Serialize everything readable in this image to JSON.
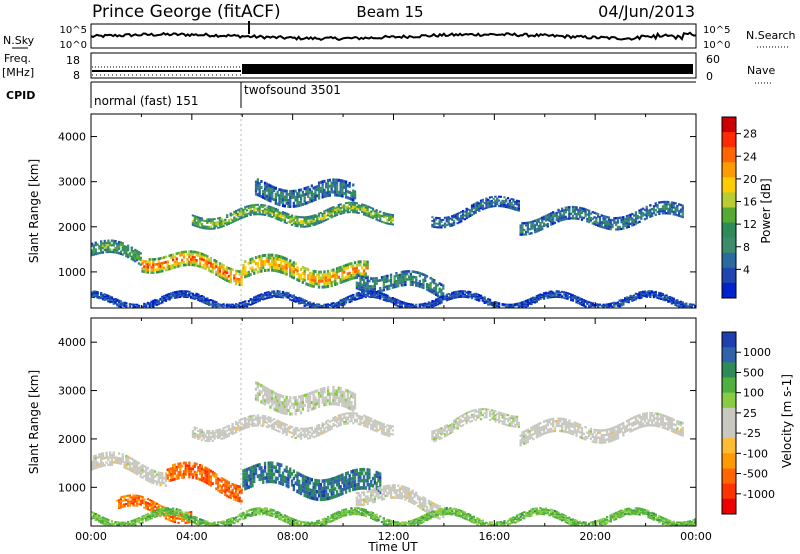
{
  "header": {
    "station": "Prince George (fitACF)",
    "beam": "Beam 15",
    "date": "04/Jun/2013"
  },
  "top_panels": {
    "nsky_label": "N.Sky",
    "nsky_ticks": [
      "10^5",
      "10^0"
    ],
    "nsearch_label": "N.Search",
    "nsearch_ticks": [
      "10^5",
      "10^0"
    ],
    "freq_label": "Freq.",
    "freq_unit": "[MHz]",
    "freq_ticks": [
      "18",
      "8"
    ],
    "nave_label": "Nave",
    "nave_ticks": [
      "60",
      "0"
    ],
    "cpid_label": "CPID",
    "modes": [
      {
        "name": "normal (fast) 151",
        "start_hour": 0,
        "end_hour": 6
      },
      {
        "name": "twofsound 3501",
        "start_hour": 6,
        "end_hour": 24
      }
    ]
  },
  "power_colorbar": {
    "label": "Power [dB]",
    "ticks": [
      "28",
      "24",
      "20",
      "16",
      "12",
      "8",
      "4"
    ],
    "colors": [
      "#cc0000",
      "#ff2a00",
      "#ff6600",
      "#ff9a00",
      "#ffcc00",
      "#b8cc33",
      "#55aa33",
      "#2e8b57",
      "#3c8c6c",
      "#2a6aa0",
      "#1f46b0",
      "#0022cc"
    ]
  },
  "velocity_colorbar": {
    "label": "Velocity [m s-1]",
    "ticks": [
      "1000",
      "500",
      "100",
      "25",
      "-25",
      "-100",
      "-500",
      "-1000"
    ],
    "colors": [
      "#1f3fb0",
      "#2f62a8",
      "#2e8b57",
      "#4fb040",
      "#88cc44",
      "#c8c8c0",
      "#c8c8c0",
      "#ffbb33",
      "#ff9900",
      "#ff6600",
      "#ff3300",
      "#ee0000"
    ]
  },
  "chart_data": [
    {
      "type": "heatmap",
      "variable": "power",
      "ylabel": "Slant Range [km]",
      "ylim": [
        200,
        4500
      ],
      "xlim": [
        0,
        24
      ],
      "yticks": [
        "4000",
        "3000",
        "2000",
        "1000"
      ],
      "ytick_values": [
        4000,
        3000,
        2000,
        1000
      ],
      "echo_bands": [
        {
          "t0": 0.0,
          "t1": 2.0,
          "r0": 1500,
          "r1": 1300,
          "w": 300,
          "level": 0.45
        },
        {
          "t0": 2.0,
          "t1": 6.0,
          "r0": 1300,
          "r1": 1000,
          "w": 350,
          "level": 0.85
        },
        {
          "t0": 6.0,
          "t1": 11.0,
          "r0": 1100,
          "r1": 900,
          "w": 400,
          "level": 0.75
        },
        {
          "t0": 4.0,
          "t1": 12.0,
          "r0": 2200,
          "r1": 2300,
          "w": 250,
          "level": 0.55
        },
        {
          "t0": 6.5,
          "t1": 10.5,
          "r0": 2800,
          "r1": 2700,
          "w": 400,
          "level": 0.3
        },
        {
          "t0": 10.5,
          "t1": 14.0,
          "r0": 900,
          "r1": 600,
          "w": 350,
          "level": 0.35
        },
        {
          "t0": 13.5,
          "t1": 17.0,
          "r0": 2200,
          "r1": 2500,
          "w": 250,
          "level": 0.25
        },
        {
          "t0": 17.0,
          "t1": 23.5,
          "r0": 2100,
          "r1": 2300,
          "w": 300,
          "level": 0.3
        },
        {
          "t0": 0.0,
          "t1": 24.0,
          "r0": 350,
          "r1": 350,
          "w": 150,
          "level": 0.15
        }
      ]
    },
    {
      "type": "heatmap",
      "variable": "velocity",
      "ylabel": "Slant Range [km]",
      "ylim": [
        200,
        4500
      ],
      "xlim": [
        0,
        24
      ],
      "yticks": [
        "4000",
        "3000",
        "2000",
        "1000"
      ],
      "ytick_values": [
        4000,
        3000,
        2000,
        1000
      ],
      "xlabel": "Time UT",
      "xticks": [
        "00:00",
        "04:00",
        "08:00",
        "12:00",
        "16:00",
        "20:00",
        "00:00"
      ],
      "xtick_values": [
        0,
        4,
        8,
        12,
        16,
        20,
        24
      ],
      "echo_bands": [
        {
          "t0": 0.0,
          "t1": 3.0,
          "r0": 1500,
          "r1": 1300,
          "w": 300,
          "vel": 0.0
        },
        {
          "t0": 3.0,
          "t1": 6.0,
          "r0": 1300,
          "r1": 1000,
          "w": 350,
          "vel": -0.6
        },
        {
          "t0": 6.0,
          "t1": 11.5,
          "r0": 1200,
          "r1": 1000,
          "w": 450,
          "vel": 0.7
        },
        {
          "t0": 4.0,
          "t1": 12.0,
          "r0": 2200,
          "r1": 2300,
          "w": 250,
          "vel": 0.0
        },
        {
          "t0": 6.5,
          "t1": 10.5,
          "r0": 2900,
          "r1": 2700,
          "w": 400,
          "vel": 0.05
        },
        {
          "t0": 1.0,
          "t1": 4.0,
          "r0": 600,
          "r1": 500,
          "w": 250,
          "vel": -0.55
        },
        {
          "t0": 10.5,
          "t1": 14.0,
          "r0": 900,
          "r1": 600,
          "w": 300,
          "vel": 0.0
        },
        {
          "t0": 13.5,
          "t1": 17.0,
          "r0": 2200,
          "r1": 2500,
          "w": 250,
          "vel": 0.05
        },
        {
          "t0": 17.0,
          "t1": 23.5,
          "r0": 2100,
          "r1": 2300,
          "w": 300,
          "vel": 0.0
        },
        {
          "t0": 0.0,
          "t1": 24.0,
          "r0": 350,
          "r1": 350,
          "w": 150,
          "vel": 0.35
        }
      ]
    }
  ]
}
